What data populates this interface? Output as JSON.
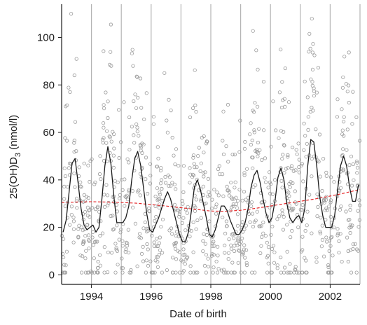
{
  "chart_data": {
    "type": "scatter",
    "title": "",
    "xlabel": "Date of birth",
    "ylabel_main": "25(OH)D",
    "ylabel_sub": "3",
    "ylabel_unit": " (nmol/l)",
    "xlim": [
      1993.0,
      2003.0
    ],
    "ylim": [
      -4,
      114
    ],
    "x_ticks": [
      1994,
      1996,
      1998,
      2000,
      2002
    ],
    "x_tick_labels": [
      "1994",
      "1996",
      "1998",
      "2000",
      "2002"
    ],
    "y_ticks": [
      0,
      20,
      40,
      60,
      80,
      100
    ],
    "y_tick_labels": [
      "0",
      "20",
      "40",
      "60",
      "80",
      "100"
    ],
    "vertical_gridlines": [
      1994,
      1995,
      1996,
      1997,
      1998,
      1999,
      2000,
      2001,
      2002,
      2003
    ],
    "grid": "vertical lines at each year",
    "colors": {
      "points": "#9a9a9a",
      "seasonal_line": "#1a1a1a",
      "trend_line": "#e31a1c",
      "gridlines": "#b4b4b4",
      "axes": "#1a1a1a"
    },
    "series": [
      {
        "kind": "points",
        "description": "individual measurements, open circles",
        "years": [
          1993,
          1994,
          1995,
          1996,
          1997,
          1998,
          1999,
          2000,
          2001,
          2002
        ],
        "points_per_year": 100,
        "y_range": [
          1,
          110
        ]
      },
      {
        "kind": "seasonal_line",
        "x": [
          1993.05,
          1993.15,
          1993.25,
          1993.35,
          1993.45,
          1993.55,
          1993.65,
          1993.75,
          1993.85,
          1993.95,
          1994.05,
          1994.15,
          1994.25,
          1994.35,
          1994.45,
          1994.55,
          1994.65,
          1994.75,
          1994.85,
          1994.95,
          1995.05,
          1995.15,
          1995.25,
          1995.35,
          1995.45,
          1995.55,
          1995.65,
          1995.75,
          1995.85,
          1995.95,
          1996.05,
          1996.15,
          1996.25,
          1996.35,
          1996.45,
          1996.55,
          1996.65,
          1996.75,
          1996.85,
          1996.95,
          1997.05,
          1997.15,
          1997.25,
          1997.35,
          1997.45,
          1997.55,
          1997.65,
          1997.75,
          1997.85,
          1997.95,
          1998.05,
          1998.15,
          1998.25,
          1998.35,
          1998.45,
          1998.55,
          1998.65,
          1998.75,
          1998.85,
          1998.95,
          1999.05,
          1999.15,
          1999.25,
          1999.35,
          1999.45,
          1999.55,
          1999.65,
          1999.75,
          1999.85,
          1999.95,
          2000.05,
          2000.15,
          2000.25,
          2000.35,
          2000.45,
          2000.55,
          2000.65,
          2000.75,
          2000.85,
          2000.95,
          2001.05,
          2001.15,
          2001.25,
          2001.35,
          2001.45,
          2001.55,
          2001.65,
          2001.75,
          2001.85,
          2001.95,
          2002.05,
          2002.15,
          2002.25,
          2002.35,
          2002.45,
          2002.55,
          2002.65,
          2002.75,
          2002.85,
          2002.95
        ],
        "y": [
          18,
          23,
          35,
          47,
          49,
          39,
          28,
          21,
          19,
          20,
          21,
          18,
          20,
          32,
          46,
          54,
          47,
          33,
          22,
          22,
          22,
          24,
          29,
          40,
          49,
          52,
          46,
          36,
          26,
          19,
          18,
          21,
          24,
          28,
          32,
          35,
          32,
          27,
          22,
          17,
          14,
          14,
          18,
          27,
          37,
          40,
          36,
          30,
          24,
          17,
          16,
          19,
          24,
          29,
          29,
          27,
          23,
          20,
          17,
          17,
          19,
          22,
          28,
          37,
          42,
          44,
          39,
          32,
          26,
          22,
          24,
          31,
          41,
          45,
          40,
          30,
          24,
          22,
          24,
          25,
          22,
          28,
          46,
          57,
          56,
          46,
          33,
          25,
          20,
          20,
          20,
          25,
          36,
          46,
          50,
          46,
          37,
          31,
          31,
          38
        ]
      },
      {
        "kind": "trend_line",
        "x": [
          1993.0,
          1993.5,
          1994.0,
          1994.5,
          1995.0,
          1995.5,
          1996.0,
          1996.5,
          1997.0,
          1997.5,
          1998.0,
          1998.5,
          1999.0,
          1999.5,
          2000.0,
          2000.5,
          2001.0,
          2001.5,
          2002.0,
          2002.5,
          2003.0
        ],
        "y": [
          30.5,
          30.7,
          30.8,
          30.7,
          30.5,
          30.2,
          29.6,
          29.0,
          28.3,
          27.6,
          26.9,
          26.8,
          27.2,
          28.0,
          29.0,
          30.0,
          31.0,
          32.0,
          33.2,
          34.5,
          36.0
        ]
      }
    ]
  }
}
